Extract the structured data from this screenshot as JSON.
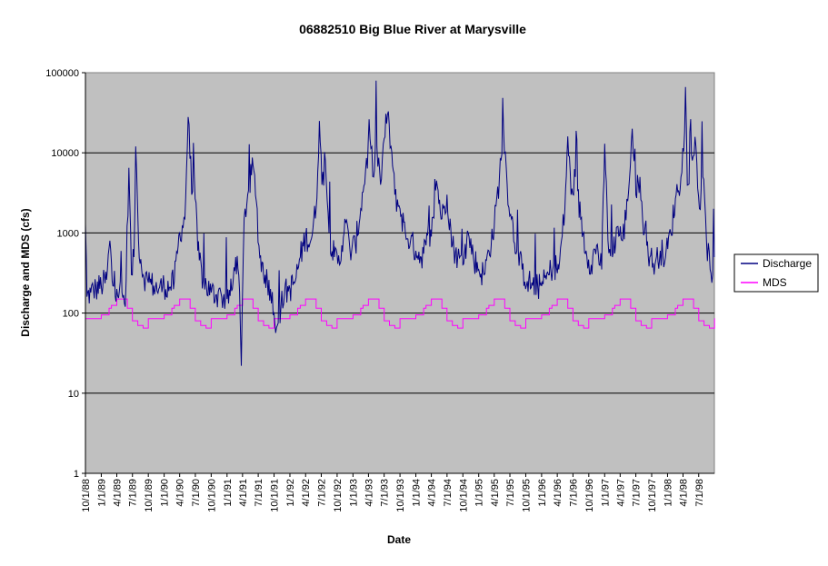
{
  "chart_data": {
    "type": "line",
    "title": "06882510 Big Blue River at Marysville",
    "xlabel": "Date",
    "ylabel": "Discharge and MDS (cfs)",
    "y_scale": "log",
    "ylim": [
      1,
      100000
    ],
    "y_ticks": [
      "1",
      "10",
      "100",
      "1000",
      "10000",
      "100000"
    ],
    "xlim": [
      "1988-10-01",
      "1998-09-30"
    ],
    "x_tick_labels": [
      "10/1/88",
      "1/1/89",
      "4/1/89",
      "7/1/89",
      "10/1/89",
      "1/1/90",
      "4/1/90",
      "7/1/90",
      "10/1/90",
      "1/1/91",
      "4/1/91",
      "7/1/91",
      "10/1/91",
      "1/1/92",
      "4/1/92",
      "7/1/92",
      "10/1/92",
      "1/1/93",
      "4/1/93",
      "7/1/93",
      "10/1/93",
      "1/1/94",
      "4/1/94",
      "7/1/94",
      "10/1/94",
      "1/1/95",
      "4/1/95",
      "7/1/95",
      "10/1/95",
      "1/1/96",
      "4/1/96",
      "7/1/96",
      "10/1/96",
      "1/1/97",
      "4/1/97",
      "7/1/97",
      "10/1/97",
      "1/1/98",
      "4/1/98",
      "7/1/98"
    ],
    "grid": "horizontal major",
    "plot_background": "#c0c0c0",
    "legend_position": "right",
    "series": [
      {
        "name": "Discharge",
        "color": "#000080",
        "points": [
          [
            "1988-10-01",
            1300
          ],
          [
            "1988-10-10",
            160
          ],
          [
            "1988-11-01",
            180
          ],
          [
            "1988-12-01",
            200
          ],
          [
            "1989-01-01",
            220
          ],
          [
            "1989-02-01",
            260
          ],
          [
            "1989-02-20",
            800
          ],
          [
            "1989-03-05",
            250
          ],
          [
            "1989-04-01",
            200
          ],
          [
            "1989-05-01",
            180
          ],
          [
            "1989-05-20",
            120
          ],
          [
            "1989-06-10",
            6500
          ],
          [
            "1989-06-25",
            300
          ],
          [
            "1989-07-10",
            500
          ],
          [
            "1989-07-20",
            12000
          ],
          [
            "1989-08-05",
            800
          ],
          [
            "1989-09-01",
            300
          ],
          [
            "1989-10-01",
            240
          ],
          [
            "1989-11-01",
            220
          ],
          [
            "1989-12-01",
            200
          ],
          [
            "1990-01-01",
            220
          ],
          [
            "1990-02-01",
            210
          ],
          [
            "1990-03-01",
            250
          ],
          [
            "1990-04-01",
            1000
          ],
          [
            "1990-05-01",
            1500
          ],
          [
            "1990-05-20",
            28000
          ],
          [
            "1990-06-10",
            3000
          ],
          [
            "1990-06-25",
            5000
          ],
          [
            "1990-07-15",
            600
          ],
          [
            "1990-08-15",
            250
          ],
          [
            "1990-10-01",
            180
          ],
          [
            "1990-11-01",
            170
          ],
          [
            "1990-12-01",
            160
          ],
          [
            "1991-01-01",
            150
          ],
          [
            "1991-02-01",
            200
          ],
          [
            "1991-02-20",
            500
          ],
          [
            "1991-03-10",
            300
          ],
          [
            "1991-03-25",
            22
          ],
          [
            "1991-04-10",
            1500
          ],
          [
            "1991-05-01",
            3000
          ],
          [
            "1991-06-01",
            7000
          ],
          [
            "1991-06-20",
            2500
          ],
          [
            "1991-07-10",
            500
          ],
          [
            "1991-08-10",
            300
          ],
          [
            "1991-09-10",
            200
          ],
          [
            "1991-10-01",
            100
          ],
          [
            "1991-10-20",
            70
          ],
          [
            "1991-11-10",
            120
          ],
          [
            "1991-12-01",
            180
          ],
          [
            "1992-01-01",
            200
          ],
          [
            "1992-02-01",
            250
          ],
          [
            "1992-03-01",
            500
          ],
          [
            "1992-04-01",
            900
          ],
          [
            "1992-05-01",
            800
          ],
          [
            "1992-06-01",
            2000
          ],
          [
            "1992-06-20",
            25000
          ],
          [
            "1992-07-05",
            4000
          ],
          [
            "1992-07-25",
            8000
          ],
          [
            "1992-08-15",
            1000
          ],
          [
            "1992-09-15",
            500
          ],
          [
            "1992-10-15",
            400
          ],
          [
            "1992-11-15",
            1500
          ],
          [
            "1992-12-15",
            600
          ],
          [
            "1993-01-15",
            700
          ],
          [
            "1993-02-15",
            2000
          ],
          [
            "1993-03-15",
            6000
          ],
          [
            "1993-04-10",
            15000
          ],
          [
            "1993-05-01",
            5000
          ],
          [
            "1993-05-20",
            12000
          ],
          [
            "1993-06-10",
            4000
          ],
          [
            "1993-07-01",
            15000
          ],
          [
            "1993-07-20",
            30000
          ],
          [
            "1993-08-10",
            12000
          ],
          [
            "1993-09-01",
            3000
          ],
          [
            "1993-10-01",
            2000
          ],
          [
            "1993-11-01",
            1000
          ],
          [
            "1993-12-01",
            800
          ],
          [
            "1994-01-01",
            600
          ],
          [
            "1994-02-01",
            500
          ],
          [
            "1994-03-01",
            700
          ],
          [
            "1994-04-01",
            900
          ],
          [
            "1994-05-01",
            4500
          ],
          [
            "1994-06-01",
            1500
          ],
          [
            "1994-07-01",
            3000
          ],
          [
            "1994-08-01",
            700
          ],
          [
            "1994-09-01",
            500
          ],
          [
            "1994-10-01",
            400
          ],
          [
            "1994-11-01",
            1000
          ],
          [
            "1994-12-01",
            500
          ],
          [
            "1995-01-01",
            350
          ],
          [
            "1995-02-01",
            300
          ],
          [
            "1995-03-01",
            600
          ],
          [
            "1995-04-01",
            1200
          ],
          [
            "1995-05-01",
            5000
          ],
          [
            "1995-05-25",
            20000
          ],
          [
            "1995-06-15",
            4000
          ],
          [
            "1995-07-10",
            1500
          ],
          [
            "1995-08-10",
            600
          ],
          [
            "1995-09-10",
            350
          ],
          [
            "1995-10-10",
            250
          ],
          [
            "1995-11-10",
            220
          ],
          [
            "1995-12-10",
            210
          ],
          [
            "1996-01-10",
            230
          ],
          [
            "1996-02-10",
            300
          ],
          [
            "1996-03-10",
            400
          ],
          [
            "1996-04-10",
            350
          ],
          [
            "1996-05-15",
            2000
          ],
          [
            "1996-06-01",
            16000
          ],
          [
            "1996-06-20",
            3000
          ],
          [
            "1996-07-15",
            5000
          ],
          [
            "1996-08-15",
            1500
          ],
          [
            "1996-09-15",
            600
          ],
          [
            "1996-10-15",
            400
          ],
          [
            "1996-11-15",
            700
          ],
          [
            "1996-12-15",
            350
          ],
          [
            "1997-01-01",
            13000
          ],
          [
            "1997-01-20",
            800
          ],
          [
            "1997-02-15",
            500
          ],
          [
            "1997-03-15",
            1200
          ],
          [
            "1997-04-15",
            800
          ],
          [
            "1997-05-15",
            2500
          ],
          [
            "1997-06-10",
            20000
          ],
          [
            "1997-07-01",
            3000
          ],
          [
            "1997-07-25",
            5000
          ],
          [
            "1997-08-20",
            1000
          ],
          [
            "1997-09-20",
            500
          ],
          [
            "1997-10-20",
            400
          ],
          [
            "1997-11-20",
            600
          ],
          [
            "1997-12-20",
            500
          ],
          [
            "1998-01-20",
            1000
          ],
          [
            "1998-02-20",
            3000
          ],
          [
            "1998-03-20",
            5000
          ],
          [
            "1998-04-10",
            18000
          ],
          [
            "1998-05-01",
            4000
          ],
          [
            "1998-05-25",
            8000
          ],
          [
            "1998-06-15",
            12000
          ],
          [
            "1998-07-05",
            2000
          ],
          [
            "1998-07-25",
            5000
          ],
          [
            "1998-08-15",
            800
          ],
          [
            "1998-09-05",
            350
          ],
          [
            "1998-09-20",
            300
          ],
          [
            "1998-09-25",
            2000
          ],
          [
            "1998-09-30",
            500
          ]
        ]
      },
      {
        "name": "MDS",
        "color": "#ff00ff",
        "annual_step_values": [
          [
            "10-01",
            85
          ],
          [
            "01-01",
            95
          ],
          [
            "02-15",
            115
          ],
          [
            "03-01",
            125
          ],
          [
            "04-01",
            150
          ],
          [
            "06-01",
            115
          ],
          [
            "07-01",
            80
          ],
          [
            "08-01",
            70
          ],
          [
            "09-01",
            65
          ],
          [
            "10-01",
            85
          ]
        ]
      }
    ]
  }
}
